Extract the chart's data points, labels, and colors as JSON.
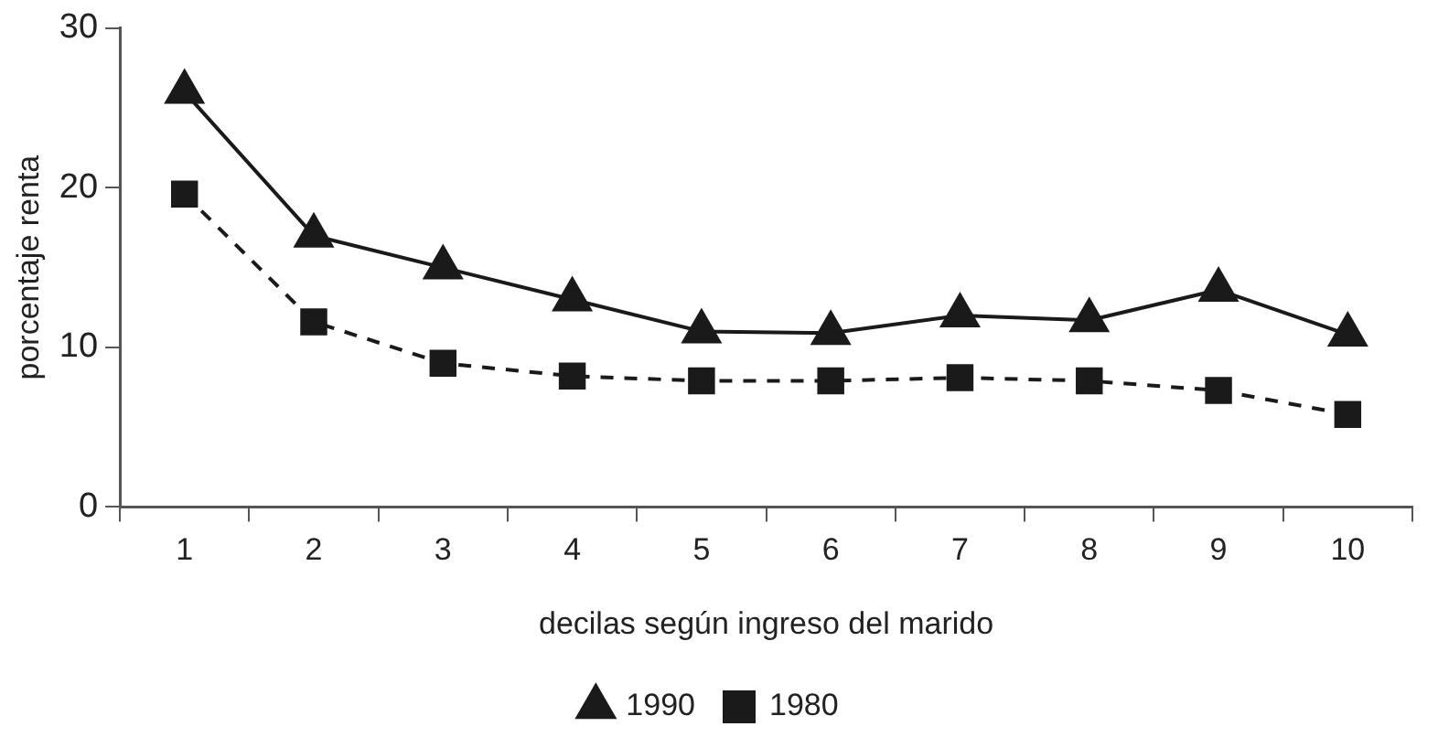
{
  "chart_data": {
    "type": "line",
    "xlabel": "decilas según ingreso del marido",
    "ylabel": "porcentaje renta",
    "categories": [
      "1",
      "2",
      "3",
      "4",
      "5",
      "6",
      "7",
      "8",
      "9",
      "10"
    ],
    "series": [
      {
        "name": "1990",
        "color": "#1a1a1a",
        "marker": "triangle",
        "line_style": "solid",
        "values": [
          26,
          17,
          15,
          13,
          11,
          10.9,
          12,
          11.7,
          13.6,
          10.8
        ]
      },
      {
        "name": "1980",
        "color": "#1a1a1a",
        "marker": "square",
        "line_style": "dashed",
        "values": [
          19.6,
          11.6,
          9,
          8.2,
          7.9,
          7.9,
          8.1,
          7.9,
          7.3,
          5.8
        ]
      }
    ],
    "ylim": [
      0,
      30
    ],
    "yticks": [
      0,
      10,
      20,
      30
    ],
    "grid": false,
    "legend": "bottom"
  }
}
